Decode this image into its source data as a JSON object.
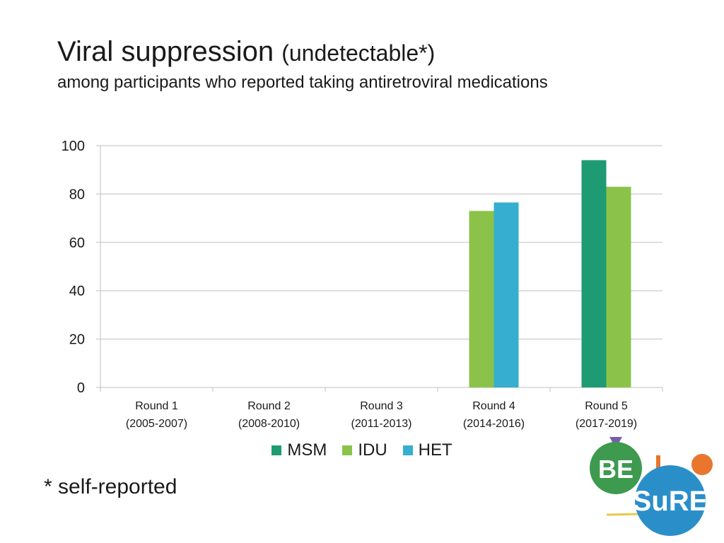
{
  "title": "Viral suppression",
  "title_paren": "(undetectable*)",
  "subtitle": "among participants who reported taking antiretroviral medications",
  "footnote": "* self-reported",
  "logo": {
    "name": "BESURE",
    "text_top": "BE",
    "text_bottom": "SuRE"
  },
  "colors": {
    "MSM": "#1e9b72",
    "IDU": "#8bc34a",
    "HET": "#35aecf"
  },
  "chart_data": {
    "type": "bar",
    "categories": [
      {
        "line1": "Round 1",
        "line2": "(2005-2007)"
      },
      {
        "line1": "Round 2",
        "line2": "(2008-2010)"
      },
      {
        "line1": "Round 3",
        "line2": "(2011-2013)"
      },
      {
        "line1": "Round 4",
        "line2": "(2014-2016)"
      },
      {
        "line1": "Round 5",
        "line2": "(2017-2019)"
      }
    ],
    "series": [
      {
        "name": "MSM",
        "values": [
          null,
          null,
          null,
          null,
          94
        ]
      },
      {
        "name": "IDU",
        "values": [
          null,
          null,
          null,
          73,
          83
        ]
      },
      {
        "name": "HET",
        "values": [
          null,
          null,
          null,
          76.5,
          null
        ]
      }
    ],
    "ylim": [
      0,
      100
    ],
    "yticks": [
      0,
      20,
      40,
      60,
      80,
      100
    ],
    "grid": true,
    "legend": "bottom-center"
  }
}
